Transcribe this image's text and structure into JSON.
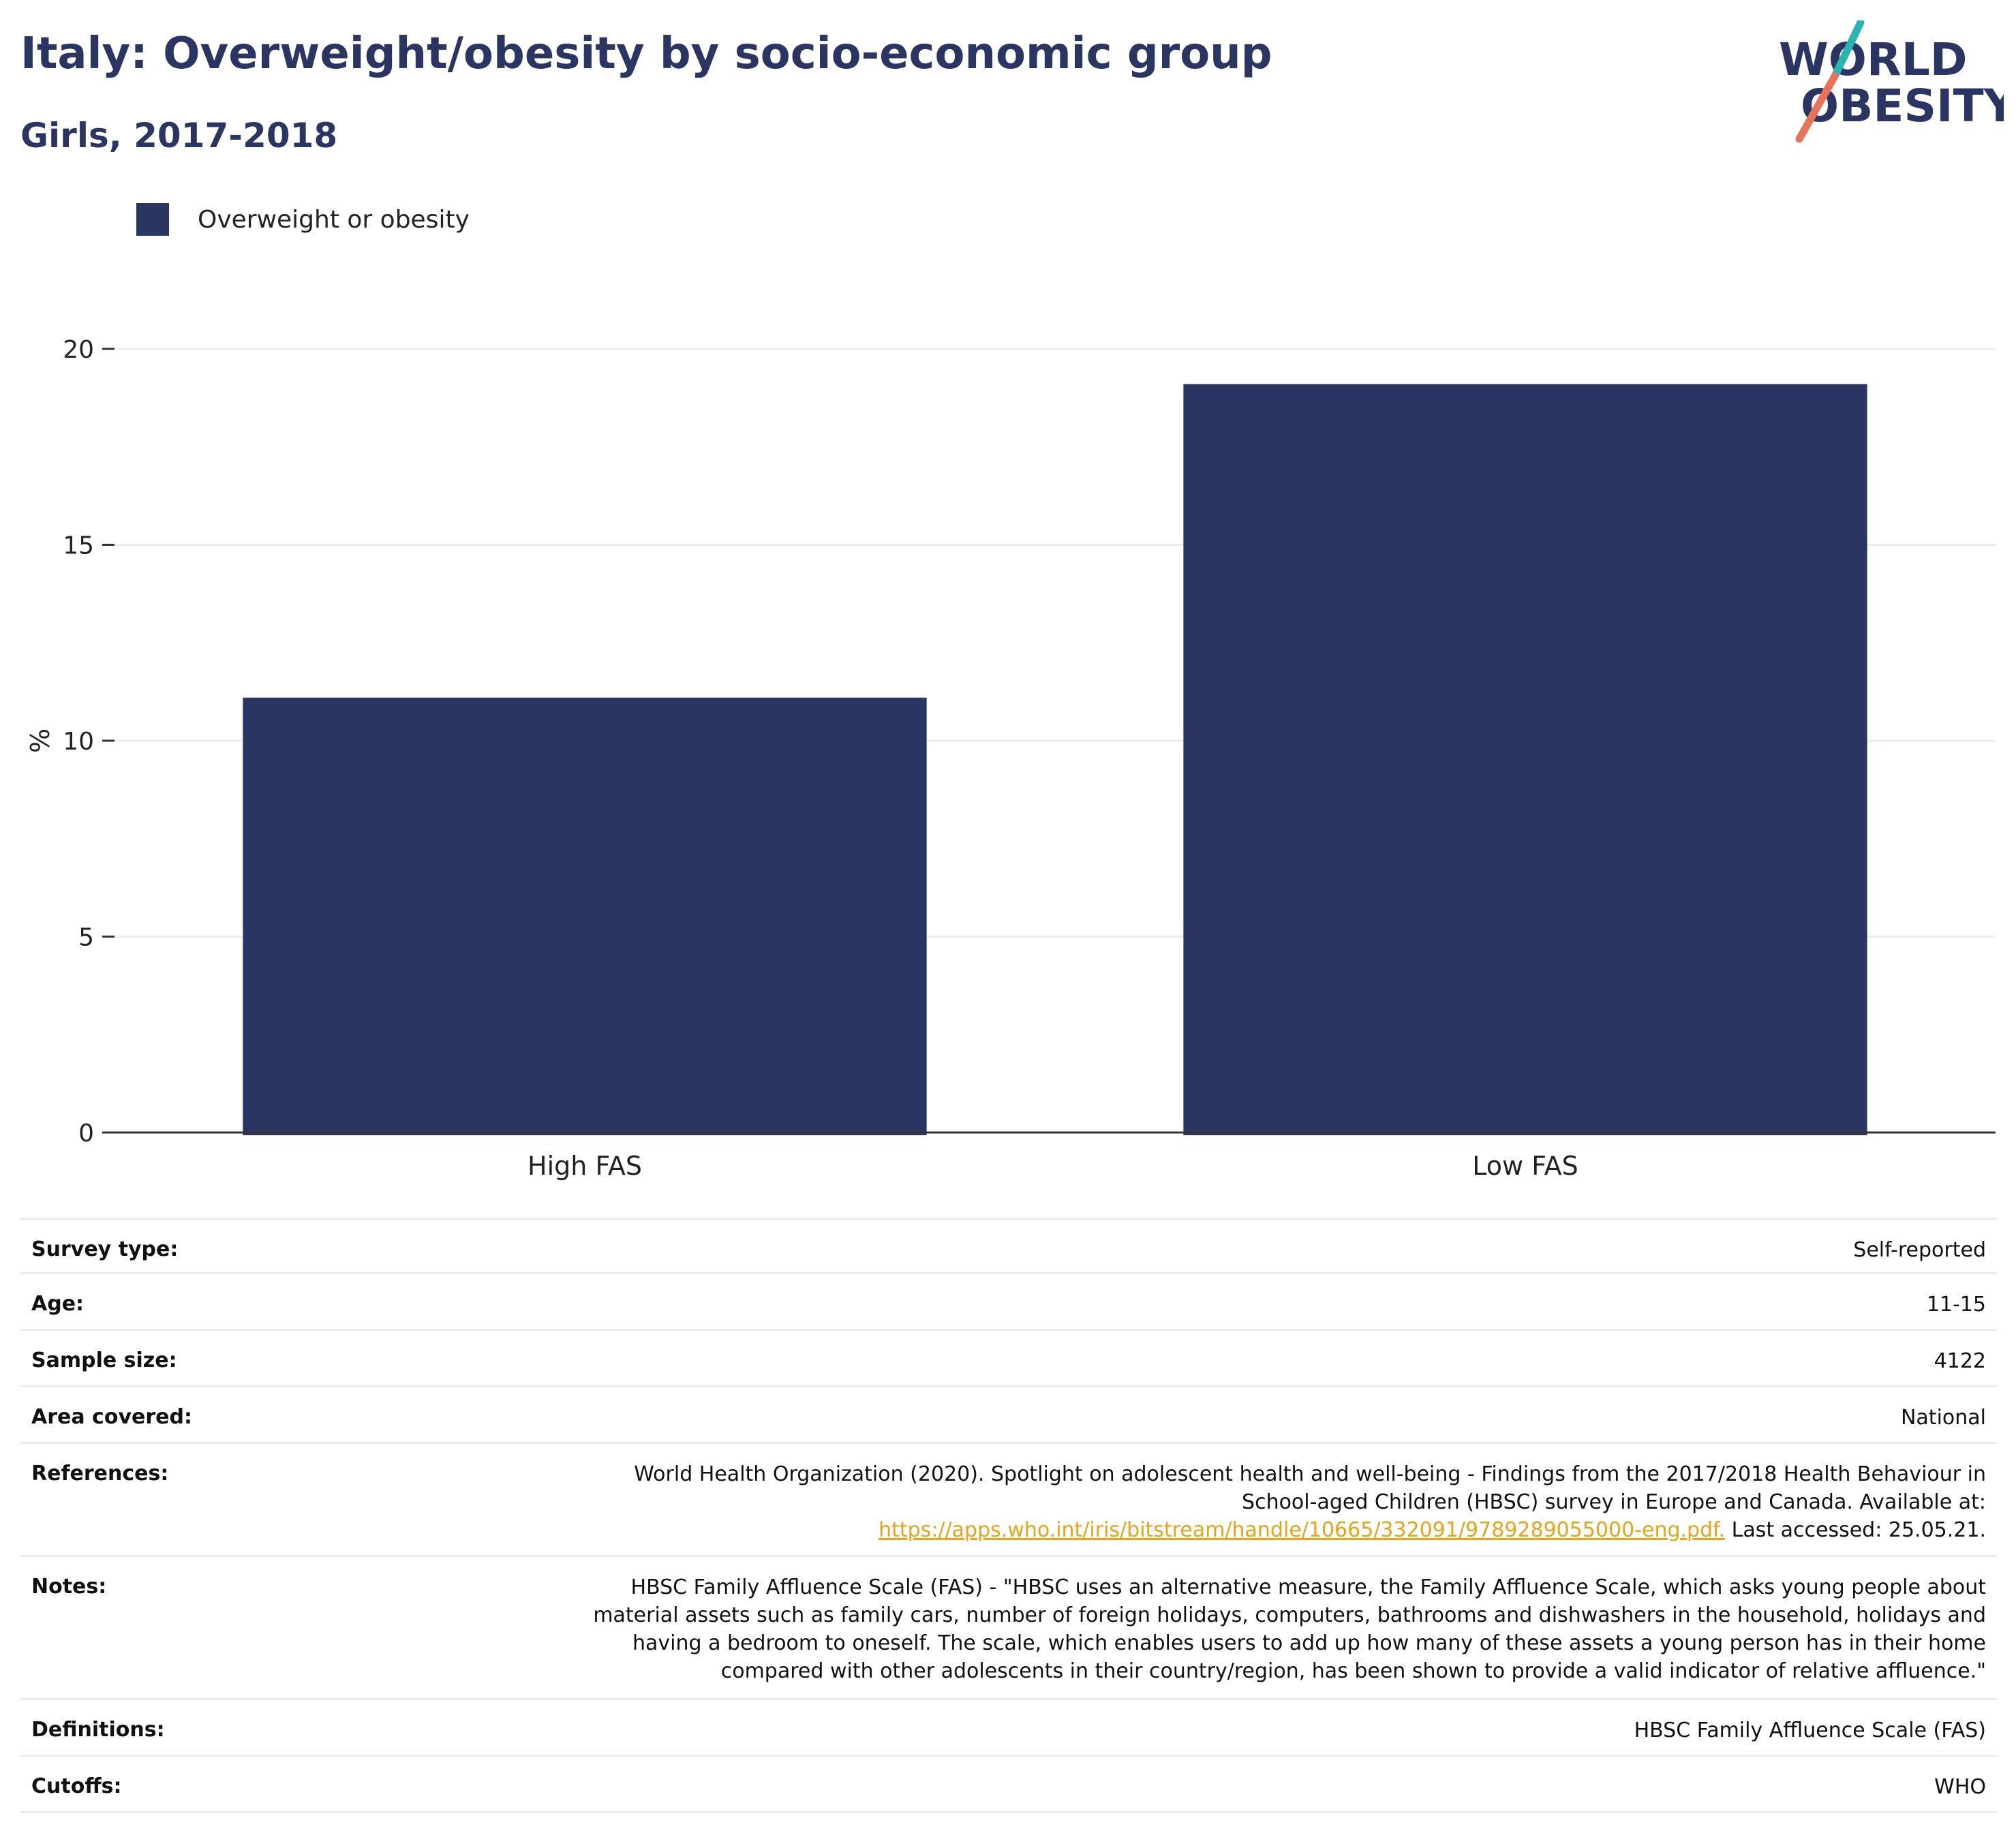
{
  "header": {
    "title": "Italy: Overweight/obesity by socio-economic group",
    "subtitle": "Girls, 2017-2018"
  },
  "logo": {
    "line1": "WORLD",
    "line2": "OBESITY",
    "colors": {
      "text": "#2a3661",
      "slash_top": "#2bb5b0",
      "slash_bottom": "#e8735a"
    }
  },
  "colors": {
    "bar": "#2a3661",
    "grid": "#ececec",
    "axis": "#333333",
    "link": "#e8a317"
  },
  "chart_data": {
    "type": "bar",
    "title": "Italy: Overweight/obesity by socio-economic group",
    "subtitle": "Girls, 2017-2018",
    "categories": [
      "High FAS",
      "Low FAS"
    ],
    "series": [
      {
        "name": "Overweight or obesity",
        "values": [
          11.1,
          19.1
        ]
      }
    ],
    "xlabel": "",
    "ylabel": "%",
    "ylim": [
      0,
      20
    ],
    "yticks": [
      0,
      5,
      10,
      15,
      20
    ],
    "grid": true,
    "legend": "top-left"
  },
  "info": {
    "survey_type": {
      "label": "Survey type:",
      "value": "Self-reported"
    },
    "age": {
      "label": "Age:",
      "value": "11-15"
    },
    "sample_size": {
      "label": "Sample size:",
      "value": "4122"
    },
    "area_covered": {
      "label": "Area covered:",
      "value": "National"
    },
    "references": {
      "label": "References:",
      "text_line1": "World Health Organization (2020). Spotlight on adolescent health and well-being - Findings from the 2017/2018 Health Behaviour in",
      "text_line2": "School-aged Children (HBSC) survey in Europe and Canada. Available at:",
      "link": "https://apps.who.int/iris/bitstream/handle/10665/332091/9789289055000-eng.pdf.",
      "suffix": " Last accessed: 25.05.21."
    },
    "notes": {
      "label": "Notes:",
      "line1": "HBSC Family Affluence Scale (FAS) - \"HBSC uses an alternative measure, the Family Affluence Scale, which asks young people about",
      "line2": "material assets such as family cars, number of foreign holidays, computers, bathrooms and dishwashers in the household, holidays and",
      "line3": "having a bedroom to oneself. The scale, which enables users to add up how many of these assets a young person has in their home",
      "line4": "compared with other adolescents in their country/region, has been shown to provide a valid indicator of relative affluence.\""
    },
    "definitions": {
      "label": "Definitions:",
      "value": "HBSC Family Affluence Scale (FAS)"
    },
    "cutoffs": {
      "label": "Cutoffs:",
      "value": "WHO"
    }
  }
}
